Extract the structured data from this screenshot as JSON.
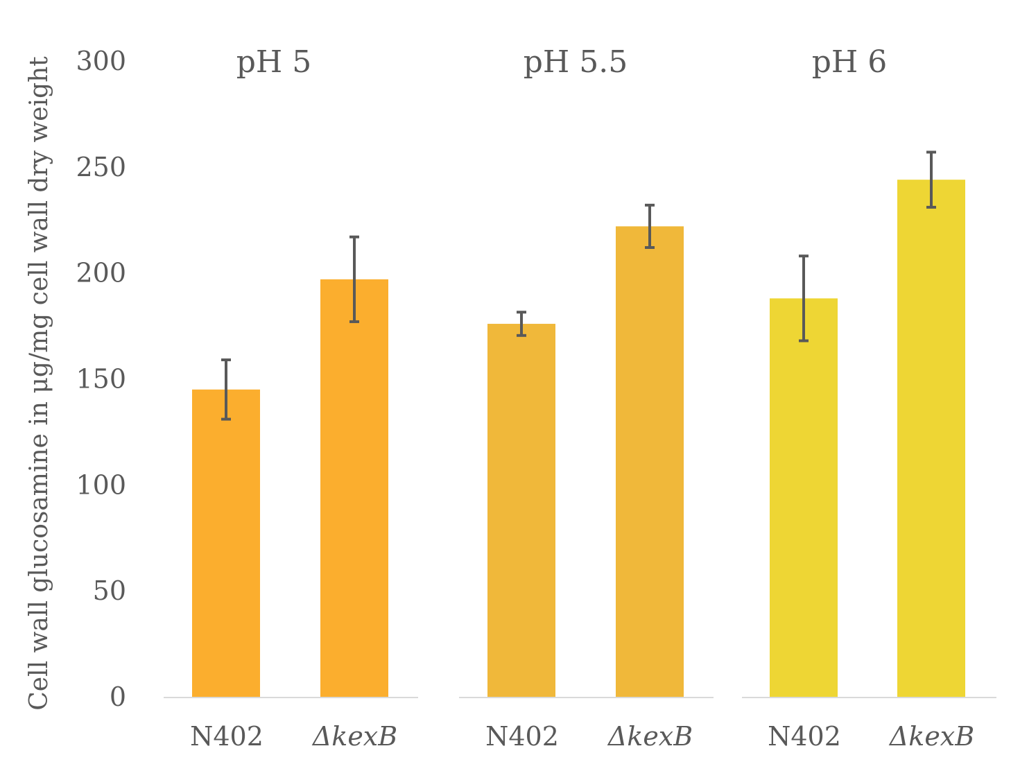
{
  "chart_data": {
    "type": "bar",
    "ylabel": "Cell wall glucosamine in μg/mg cell wall dry weight",
    "ylim": [
      0,
      300
    ],
    "yticks": [
      "0",
      "50",
      "100",
      "150",
      "200",
      "250",
      "300"
    ],
    "error_bar_color": "#595959",
    "axis_color": "#d9d9d9",
    "panels": [
      {
        "title": "pH 5",
        "color": "#fbae2e",
        "categories": [
          "N402",
          "ΔkexB"
        ],
        "italic": [
          false,
          true
        ],
        "values": [
          145,
          197
        ],
        "errors": [
          14,
          20
        ]
      },
      {
        "title": "pH 5.5",
        "color": "#f0b83a",
        "categories": [
          "N402",
          "ΔkexB"
        ],
        "italic": [
          false,
          true
        ],
        "values": [
          176,
          222
        ],
        "errors": [
          5.5,
          10
        ]
      },
      {
        "title": "pH 6",
        "color": "#eed634",
        "categories": [
          "N402",
          "ΔkexB"
        ],
        "italic": [
          false,
          true
        ],
        "values": [
          188,
          244
        ],
        "errors": [
          20,
          13
        ]
      }
    ]
  }
}
